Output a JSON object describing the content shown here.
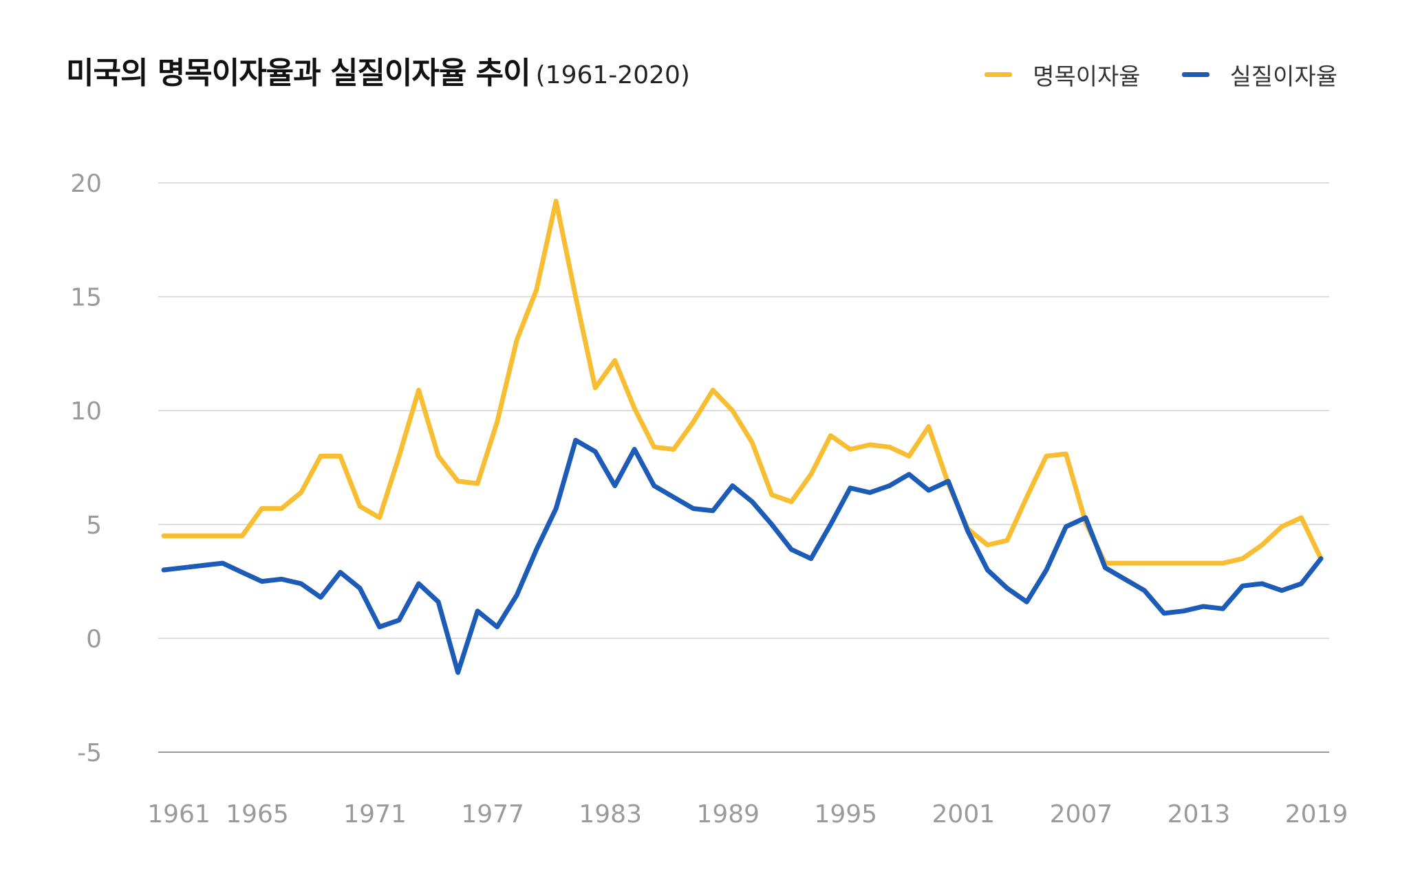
{
  "title": "미국의 명목이자율과 실질이자율 추이",
  "subtitle": "(1961-2020)",
  "colors": {
    "nominal": "#F7BE33",
    "real": "#1D5CB6",
    "grid": "#d4d4d4",
    "axis": "#999999",
    "tick_text": "#9a9a9a"
  },
  "chart_data": {
    "type": "line",
    "xlabel": "",
    "ylabel": "",
    "ylim": [
      -5,
      20
    ],
    "yticks": [
      20,
      15,
      10,
      5,
      0,
      -5
    ],
    "xtick_labels": [
      "1961",
      "1965",
      "1971",
      "1977",
      "1983",
      "1989",
      "1995",
      "2001",
      "2007",
      "2013",
      "2019"
    ],
    "grid": true,
    "legend_position": "top-right",
    "x": [
      1961,
      1962,
      1963,
      1964,
      1965,
      1966,
      1967,
      1968,
      1969,
      1970,
      1971,
      1972,
      1973,
      1974,
      1975,
      1976,
      1977,
      1978,
      1979,
      1980,
      1981,
      1982,
      1983,
      1984,
      1985,
      1986,
      1987,
      1988,
      1989,
      1990,
      1991,
      1992,
      1993,
      1994,
      1995,
      1996,
      1997,
      1998,
      1999,
      2000,
      2001,
      2002,
      2003,
      2004,
      2005,
      2006,
      2007,
      2008,
      2009,
      2010,
      2011,
      2012,
      2013,
      2014,
      2015,
      2016,
      2017,
      2018,
      2019,
      2020
    ],
    "series": [
      {
        "name": "명목이자율",
        "color_key": "nominal",
        "values": [
          4.5,
          4.5,
          4.5,
          4.5,
          4.5,
          5.7,
          5.7,
          6.4,
          8.0,
          8.0,
          5.8,
          5.3,
          8.0,
          10.9,
          8.0,
          6.9,
          6.8,
          9.5,
          13.1,
          15.3,
          19.2,
          15.0,
          11.0,
          12.2,
          10.1,
          8.4,
          8.3,
          9.5,
          10.9,
          10.0,
          8.6,
          6.3,
          6.0,
          7.2,
          8.9,
          8.3,
          8.5,
          8.4,
          8.0,
          9.3,
          6.8,
          4.8,
          4.1,
          4.3,
          6.2,
          8.0,
          8.1,
          5.1,
          3.3,
          3.3,
          3.3,
          3.3,
          3.3,
          3.3,
          3.3,
          3.5,
          4.1,
          4.9,
          5.3,
          3.5
        ]
      },
      {
        "name": "실질이자율",
        "color_key": "real",
        "values": [
          3.0,
          3.1,
          3.2,
          3.3,
          2.9,
          2.5,
          2.6,
          2.4,
          1.8,
          2.9,
          2.2,
          0.5,
          0.8,
          2.4,
          1.6,
          -1.5,
          1.2,
          0.5,
          1.9,
          3.9,
          5.7,
          8.7,
          8.2,
          6.7,
          8.3,
          6.7,
          6.2,
          5.7,
          5.6,
          6.7,
          6.0,
          5.0,
          3.9,
          3.5,
          5.0,
          6.6,
          6.4,
          6.7,
          7.2,
          6.5,
          6.9,
          4.7,
          3.0,
          2.2,
          1.6,
          3.0,
          4.9,
          5.3,
          3.1,
          2.6,
          2.1,
          1.1,
          1.2,
          1.4,
          1.3,
          2.3,
          2.4,
          2.1,
          2.4,
          3.5
        ]
      }
    ]
  }
}
